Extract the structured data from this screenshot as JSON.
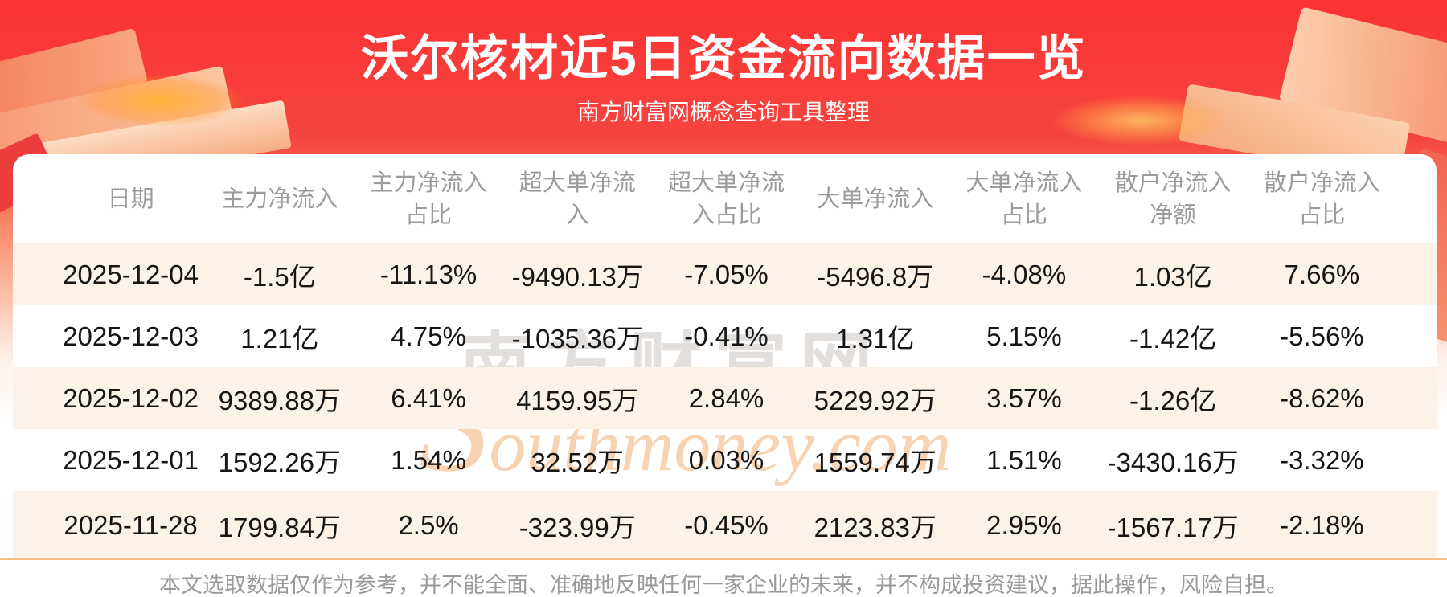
{
  "page": {
    "title": "沃尔核材近5日资金流向数据一览",
    "subtitle": "南方财富网概念查询工具整理",
    "disclaimer": "本文选取数据仅作为参考，并不能全面、准确地反映任何一家企业的未来，并不构成投资建议，据此操作，风险自担。"
  },
  "watermark": {
    "cn": "南方财富网",
    "en": "Southmoney.com"
  },
  "colors": {
    "banner_red_top": "#fb3333",
    "banner_red_mid": "#f5443e",
    "row_stripe": "#fdf2e8",
    "divider_orange": "#f4be86",
    "header_text": "#9b9b9b",
    "body_text": "#161616",
    "title_text": "#ffffff"
  },
  "chart_data": {
    "type": "table",
    "title": "沃尔核材近5日资金流向数据一览",
    "columns": [
      "日期",
      "主力净流入",
      "主力净流入占比",
      "超大单净流入",
      "超大单净流入占比",
      "大单净流入",
      "大单净流入占比",
      "散户净流入净额",
      "散户净流入占比"
    ],
    "header_lines": [
      [
        "日期"
      ],
      [
        "主力净流入"
      ],
      [
        "主力净流入",
        "占比"
      ],
      [
        "超大单净流",
        "入"
      ],
      [
        "超大单净流",
        "入占比"
      ],
      [
        "大单净流入"
      ],
      [
        "大单净流入",
        "占比"
      ],
      [
        "散户净流入",
        "净额"
      ],
      [
        "散户净流入",
        "占比"
      ]
    ],
    "rows": [
      [
        "2025-12-04",
        "-1.5亿",
        "-11.13%",
        "-9490.13万",
        "-7.05%",
        "-5496.8万",
        "-4.08%",
        "1.03亿",
        "7.66%"
      ],
      [
        "2025-12-03",
        "1.21亿",
        "4.75%",
        "-1035.36万",
        "-0.41%",
        "1.31亿",
        "5.15%",
        "-1.42亿",
        "-5.56%"
      ],
      [
        "2025-12-02",
        "9389.88万",
        "6.41%",
        "4159.95万",
        "2.84%",
        "5229.92万",
        "3.57%",
        "-1.26亿",
        "-8.62%"
      ],
      [
        "2025-12-01",
        "1592.26万",
        "1.54%",
        "32.52万",
        "0.03%",
        "1559.74万",
        "1.51%",
        "-3430.16万",
        "-3.32%"
      ],
      [
        "2025-11-28",
        "1799.84万",
        "2.5%",
        "-323.99万",
        "-0.45%",
        "2123.83万",
        "2.95%",
        "-1567.17万",
        "-2.18%"
      ]
    ]
  }
}
